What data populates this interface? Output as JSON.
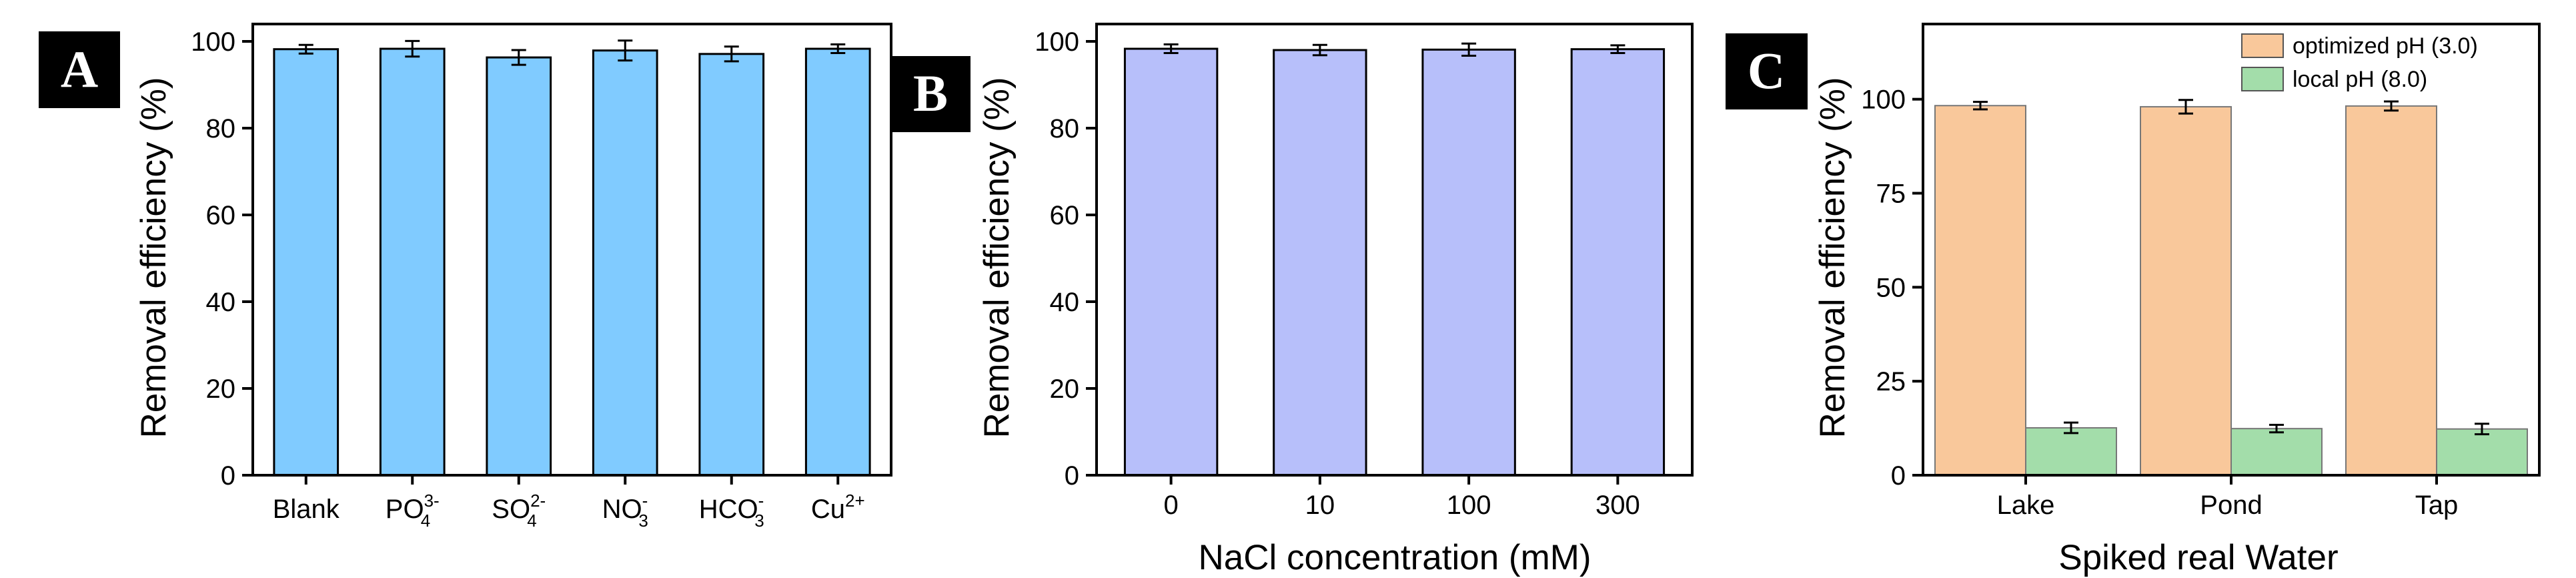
{
  "chart_data": [
    {
      "panel_label": "A",
      "type": "bar",
      "ylabel": "Removal efficiency (%)",
      "xlabel": "",
      "ylim": [
        0,
        104
      ],
      "yticks": [
        0,
        20,
        40,
        60,
        80,
        100
      ],
      "categories": [
        {
          "base": "Blank",
          "sub": "",
          "sup": ""
        },
        {
          "base": "PO",
          "sub": "4",
          "sup": "3-"
        },
        {
          "base": "SO",
          "sub": "4",
          "sup": "2-"
        },
        {
          "base": "NO",
          "sub": "3",
          "sup": "-"
        },
        {
          "base": "HCO",
          "sub": "3",
          "sup": "-"
        },
        {
          "base": "Cu",
          "sub": "",
          "sup": "2+"
        }
      ],
      "values": [
        98.2,
        98.3,
        96.3,
        97.9,
        97.1,
        98.3
      ],
      "errors": [
        1.0,
        1.8,
        1.7,
        2.3,
        1.7,
        1.0
      ],
      "color": "#80cbff"
    },
    {
      "panel_label": "B",
      "type": "bar",
      "ylabel": "Removal efficiency (%)",
      "xlabel": "NaCl concentration (mM)",
      "ylim": [
        0,
        104
      ],
      "yticks": [
        0,
        20,
        40,
        60,
        80,
        100
      ],
      "categories": [
        "0",
        "10",
        "100",
        "300"
      ],
      "values": [
        98.3,
        98.0,
        98.1,
        98.2
      ],
      "errors": [
        1.0,
        1.2,
        1.4,
        0.9
      ],
      "color": "#b7bffa"
    },
    {
      "panel_label": "C",
      "type": "bar",
      "ylabel": "Removal efficiency (%)",
      "xlabel": "Spiked real Water",
      "ylim": [
        0,
        120
      ],
      "yticks": [
        0,
        25,
        50,
        75,
        100
      ],
      "categories": [
        "Lake",
        "Pond",
        "Tap"
      ],
      "legend_position": "top-right",
      "series": [
        {
          "name": "optimized pH (3.0)",
          "values": [
            98.3,
            98.0,
            98.2
          ],
          "errors": [
            1.0,
            1.8,
            1.2
          ],
          "color": "#f9c89b"
        },
        {
          "name": "local pH (8.0)",
          "values": [
            12.6,
            12.4,
            12.3
          ],
          "errors": [
            1.4,
            1.0,
            1.4
          ],
          "color": "#a3ddaa"
        }
      ]
    }
  ]
}
